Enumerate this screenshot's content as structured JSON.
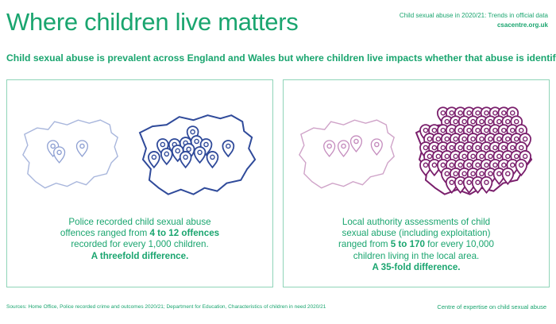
{
  "header": {
    "title": "Where children live matters",
    "report": "Child sexual abuse in 2020/21: Trends in official data",
    "site": "csacentre.org.uk"
  },
  "subtitle": "Child sexual abuse is prevalent across England and Wales but where children live impacts whether that abuse is identified.",
  "panels": {
    "police": {
      "line1": "Police recorded child sexual abuse",
      "line2a": "offences ranged from ",
      "line2b": "4 to 12 offences",
      "line3": "recorded for every 1,000 children.",
      "line4": "A threefold difference.",
      "color": "#3d5fa8"
    },
    "local_authority": {
      "line1": "Local authority assessments of child",
      "line2": "sexual abuse (including exploitation)",
      "line3a": "ranged from ",
      "line3b": "5 to 170",
      "line3c": " for every 10,000",
      "line4": "children living in the local area.",
      "line5": "A 35-fold difference.",
      "color": "#8e2a7e"
    }
  },
  "footer": {
    "sources": "Sources: Home Office, Police recorded crime and outcomes 2020/21; Department for Education, Characteristics of children in need 2020/21",
    "centre": "Centre of expertise on child sexual abuse"
  },
  "icons": [
    "map-pin-icon"
  ],
  "colors": {
    "accent": "#1aa56f",
    "police": "#3d5fa8",
    "local_authority": "#8e2a7e"
  }
}
